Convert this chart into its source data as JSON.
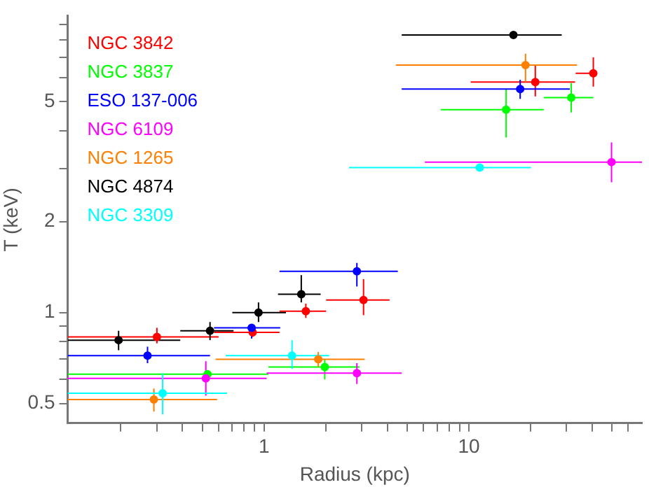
{
  "chart_data": {
    "type": "scatter",
    "xlabel": "Radius (kpc)",
    "ylabel": "T (keV)",
    "log": "xy",
    "legend": "top left",
    "marker": "circle",
    "xlim": [
      0.11,
      70
    ],
    "ylim": [
      0.43,
      9.6
    ],
    "xticks": [
      {
        "value": 0.2,
        "label": null
      },
      {
        "value": 0.3,
        "label": null
      },
      {
        "value": 0.4,
        "label": null
      },
      {
        "value": 0.5,
        "label": null
      },
      {
        "value": 0.6,
        "label": null
      },
      {
        "value": 0.7,
        "label": null
      },
      {
        "value": 0.8,
        "label": null
      },
      {
        "value": 0.9,
        "label": null
      },
      1,
      {
        "value": 2,
        "label": null
      },
      {
        "value": 3,
        "label": null
      },
      {
        "value": 4,
        "label": null
      },
      {
        "value": 5,
        "label": null
      },
      {
        "value": 6,
        "label": null
      },
      {
        "value": 7,
        "label": null
      },
      {
        "value": 8,
        "label": null
      },
      {
        "value": 9,
        "label": null
      },
      10,
      {
        "value": 20,
        "label": null
      },
      {
        "value": 30,
        "label": null
      },
      {
        "value": 40,
        "label": null
      },
      {
        "value": 50,
        "label": null
      },
      {
        "value": 60,
        "label": null
      }
    ],
    "yticks": [
      0.5,
      {
        "value": 0.6,
        "label": null
      },
      {
        "value": 0.7,
        "label": null
      },
      {
        "value": 0.8,
        "label": null
      },
      {
        "value": 0.9,
        "label": null
      },
      1,
      2,
      {
        "value": 3,
        "label": null
      },
      {
        "value": 4,
        "label": null
      },
      5,
      {
        "value": 6,
        "label": null
      },
      {
        "value": 7,
        "label": null
      },
      {
        "value": 8,
        "label": null
      },
      {
        "value": 9,
        "label": null
      }
    ],
    "series": [
      {
        "name": "NGC 3842",
        "color": "#ff0000",
        "x": [
          0.3,
          0.88,
          1.6,
          3.06,
          21.1,
          40.5
        ],
        "values": [
          0.83,
          0.86,
          1.01,
          1.1,
          5.8,
          6.2
        ],
        "xerrors": [
          [
            0.11,
            0.6
          ],
          [
            0.57,
            1.19
          ],
          [
            1.19,
            2.01
          ],
          [
            2.01,
            4.1
          ],
          [
            10.2,
            33
          ],
          [
            33.2,
            41.9
          ]
        ],
        "errors": [
          [
            0.79,
            0.89
          ],
          [
            0.83,
            0.89
          ],
          [
            0.96,
            1.07
          ],
          [
            0.98,
            1.29
          ],
          [
            5.2,
            6.6
          ],
          [
            5.6,
            7.0
          ]
        ]
      },
      {
        "name": "NGC 3837",
        "color": "#00ff00",
        "x": [
          0.53,
          1.98,
          15.2,
          31.6
        ],
        "values": [
          0.625,
          0.66,
          4.7,
          5.15
        ],
        "xerrors": [
          [
            0.11,
            1.05
          ],
          [
            1.05,
            2.93
          ],
          [
            7.3,
            23.2
          ],
          [
            23.2,
            40.5
          ]
        ],
        "errors": [
          [
            0.61,
            0.64
          ],
          [
            0.6,
            0.7
          ],
          [
            3.8,
            5.5
          ],
          [
            4.6,
            5.75
          ]
        ]
      },
      {
        "name": "ESO 137-006",
        "color": "#0000ff",
        "x": [
          0.27,
          0.87,
          2.84,
          17.8
        ],
        "values": [
          0.72,
          0.89,
          1.37,
          5.5
        ],
        "xerrors": [
          [
            0.11,
            0.545
          ],
          [
            0.57,
            1.2
          ],
          [
            1.19,
            4.5
          ],
          [
            4.7,
            31.1
          ]
        ],
        "errors": [
          [
            0.68,
            0.77
          ],
          [
            0.82,
            0.91
          ],
          [
            1.22,
            1.46
          ],
          [
            5.1,
            5.9
          ]
        ]
      },
      {
        "name": "NGC 6109",
        "color": "#ff00ff",
        "x": [
          0.52,
          2.84,
          49.7
        ],
        "values": [
          0.605,
          0.63,
          3.15
        ],
        "xerrors": [
          [
            0.11,
            1.03
          ],
          [
            1.03,
            4.7
          ],
          [
            6.1,
            70
          ]
        ],
        "errors": [
          [
            0.53,
            0.69
          ],
          [
            0.58,
            0.68
          ],
          [
            2.7,
            3.66
          ]
        ]
      },
      {
        "name": "NGC 1265",
        "color": "#ff8000",
        "x": [
          0.29,
          1.84,
          18.9
        ],
        "values": [
          0.515,
          0.7,
          6.6
        ],
        "xerrors": [
          [
            0.11,
            0.59
          ],
          [
            0.58,
            3.1
          ],
          [
            4.4,
            33.7
          ]
        ],
        "errors": [
          [
            0.47,
            0.56
          ],
          [
            0.66,
            0.74
          ],
          [
            5.8,
            7.2
          ]
        ]
      },
      {
        "name": "NGC 4874",
        "color": "#000000",
        "x": [
          0.195,
          0.545,
          0.94,
          1.52,
          16.5
        ],
        "values": [
          0.81,
          0.87,
          1.0,
          1.15,
          8.3
        ],
        "xerrors": [
          [
            0.11,
            0.39
          ],
          [
            0.39,
            0.71
          ],
          [
            0.7,
            1.28
          ],
          [
            1.17,
            1.89
          ],
          [
            4.7,
            28.4
          ]
        ],
        "errors": [
          [
            0.75,
            0.87
          ],
          [
            0.81,
            0.93
          ],
          [
            0.93,
            1.08
          ],
          [
            1.08,
            1.33
          ],
          [
            8.1,
            8.5
          ]
        ]
      },
      {
        "name": "NGC 3309",
        "color": "#00ffff",
        "x": [
          0.32,
          1.37,
          11.3
        ],
        "values": [
          0.54,
          0.72,
          3.02
        ],
        "xerrors": [
          [
            0.11,
            0.66
          ],
          [
            0.65,
            2.08
          ],
          [
            2.6,
            20.1
          ]
        ],
        "errors": [
          [
            0.46,
            0.63
          ],
          [
            0.65,
            0.81
          ],
          [
            2.95,
            3.1
          ]
        ]
      }
    ]
  }
}
